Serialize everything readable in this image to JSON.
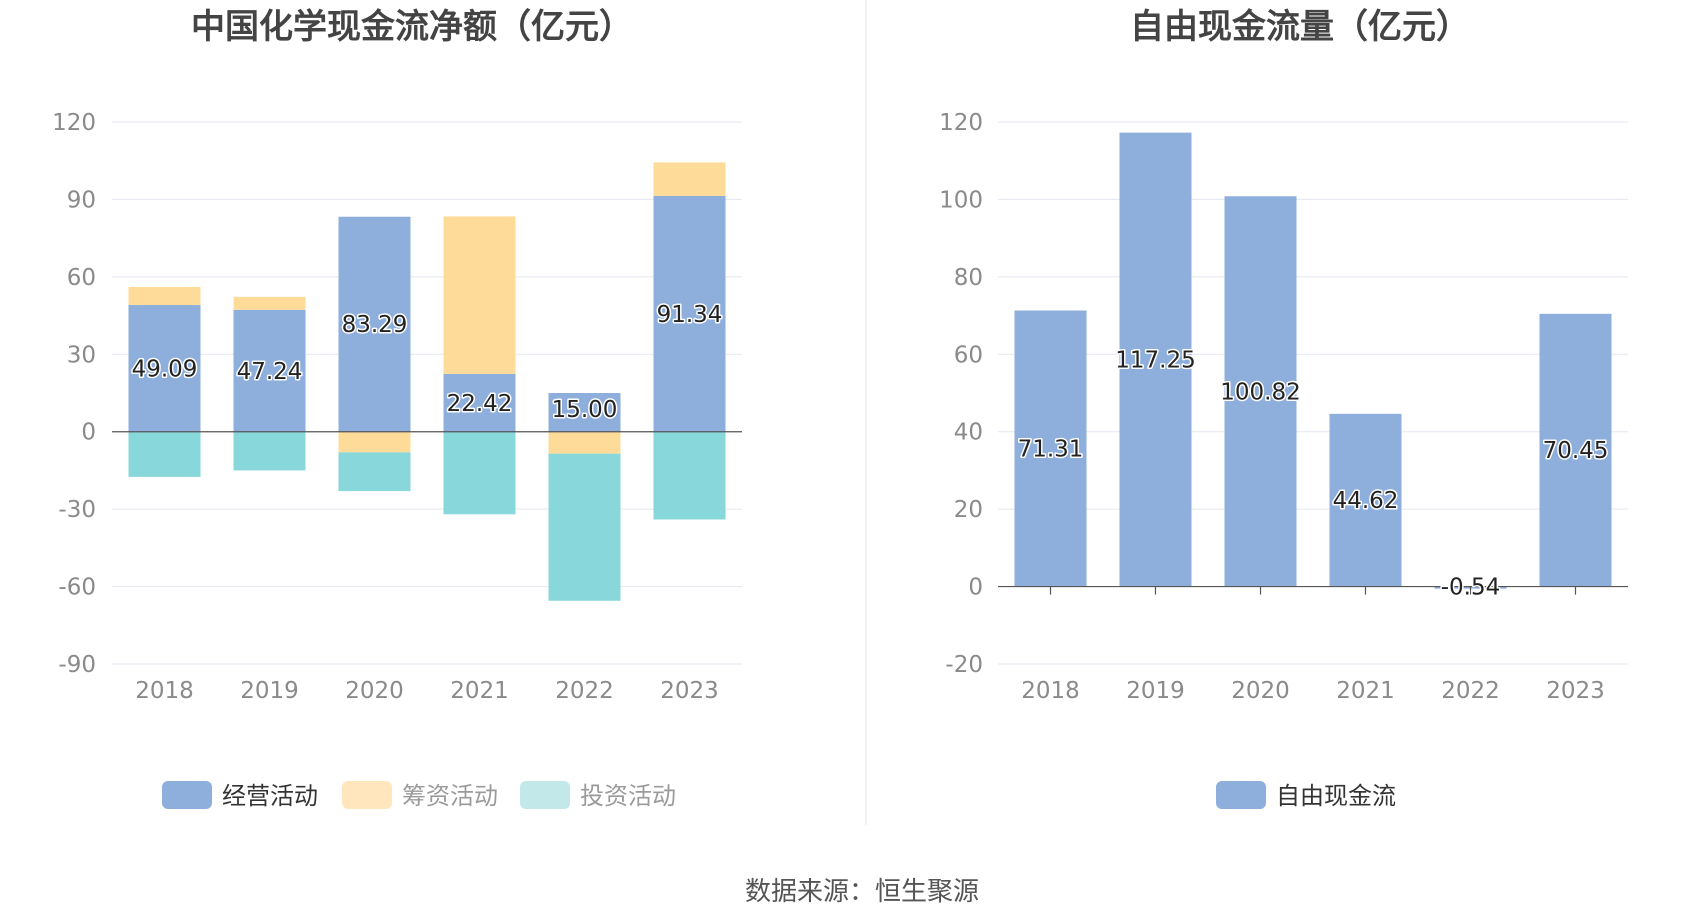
{
  "source": {
    "label": "数据来源：恒生聚源"
  },
  "chart_data": [
    {
      "type": "bar",
      "stacked": true,
      "title": "中国化学现金流净额（亿元）",
      "categories": [
        "2018",
        "2019",
        "2020",
        "2021",
        "2022",
        "2023"
      ],
      "ylim": [
        -90,
        120
      ],
      "yticks": [
        120,
        90,
        60,
        30,
        0,
        -30,
        -60,
        -90
      ],
      "series": [
        {
          "name": "经营活动",
          "color": "#8eaedb",
          "labeled": true,
          "labels": [
            "49.09",
            "47.24",
            "83.29",
            "22.42",
            "15.00",
            "91.34"
          ],
          "values": [
            49.09,
            47.24,
            83.29,
            22.42,
            15.0,
            91.34
          ]
        },
        {
          "name": "筹资活动",
          "color": "#ffdb9a",
          "labeled": false,
          "values": [
            7.0,
            5.0,
            -8.0,
            61.0,
            -8.5,
            13.0
          ]
        },
        {
          "name": "投资活动",
          "color": "#88d7da",
          "labeled": false,
          "values": [
            -17.5,
            -15.0,
            -15.0,
            -32.0,
            -57.0,
            -34.0
          ]
        }
      ],
      "legend": [
        {
          "name": "经营活动",
          "color": "#8eaedb",
          "text_color": "#333333"
        },
        {
          "name": "筹资活动",
          "color": "#ffe6bd",
          "text_color": "#9a9a9a"
        },
        {
          "name": "投资活动",
          "color": "#c2e8e9",
          "text_color": "#9a9a9a"
        }
      ]
    },
    {
      "type": "bar",
      "stacked": false,
      "title": "自由现金流量（亿元）",
      "categories": [
        "2018",
        "2019",
        "2020",
        "2021",
        "2022",
        "2023"
      ],
      "ylim": [
        -20,
        120
      ],
      "yticks": [
        120,
        100,
        80,
        60,
        40,
        20,
        0,
        -20
      ],
      "series": [
        {
          "name": "自由现金流",
          "color": "#8eaedb",
          "labeled": true,
          "labels": [
            "71.31",
            "117.25",
            "100.82",
            "44.62",
            "-0.54",
            "70.45"
          ],
          "values": [
            71.31,
            117.25,
            100.82,
            44.62,
            -0.54,
            70.45
          ]
        }
      ],
      "legend": [
        {
          "name": "自由现金流",
          "color": "#8eaedb",
          "text_color": "#333333"
        }
      ]
    }
  ]
}
